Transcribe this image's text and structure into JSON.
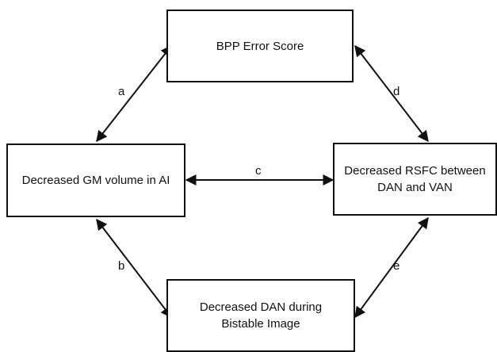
{
  "nodes": {
    "top": "BPP Error Score",
    "left": "Decreased GM volume in AI",
    "right": "Decreased RSFC between\nDAN and VAN",
    "bottom": "Decreased DAN during\nBistable Image"
  },
  "edges": {
    "a": "a",
    "b": "b",
    "c": "c",
    "d": "d",
    "e": "e"
  },
  "edge_style": "bidirectional"
}
